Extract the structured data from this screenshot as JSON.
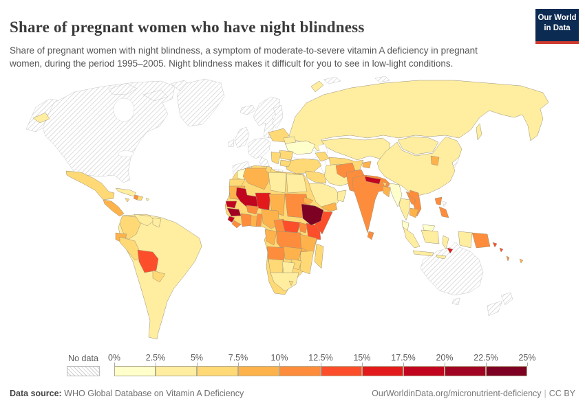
{
  "header": {
    "title": "Share of pregnant women who have night blindness",
    "subtitle": "Share of pregnant women with night blindness, a symptom of moderate-to-severe vitamin A deficiency in pregnant women, during the period 1995–2005. Night blindness makes it difficult for you to see in low-light conditions.",
    "logo": {
      "line1": "Our World",
      "line2": "in Data",
      "bg": "#0c2b52",
      "accent": "#cf3a30"
    }
  },
  "legend": {
    "no_data_label": "No data",
    "tick_labels": [
      "0%",
      "2.5%",
      "5%",
      "7.5%",
      "10%",
      "12.5%",
      "15%",
      "17.5%",
      "20%",
      "22.5%",
      "25%"
    ],
    "bin_colors": [
      "#FFFFCC",
      "#FFEDA0",
      "#FED976",
      "#FEB24C",
      "#FD8D3C",
      "#FC4E2A",
      "#E31A1C",
      "#C2051F",
      "#A10323",
      "#7D0123"
    ]
  },
  "footer": {
    "source_label": "Data source:",
    "source_text": " WHO Global Database on Vitamin A Deficiency",
    "link_text": "OurWorldinData.org/micronutrient-deficiency",
    "license": "CC BY"
  },
  "chart_data": {
    "type": "choropleth_map",
    "title": "Share of pregnant women who have night blindness",
    "period": "1995–2005",
    "unit": "% of pregnant women with night blindness",
    "scale": {
      "min_label": "0%",
      "max_label": "25%",
      "bin_width_percent": 2.5,
      "n_bins": 10
    },
    "no_data_regions": [
      "United States",
      "Canada",
      "Greenland",
      "Iceland",
      "United Kingdom",
      "Ireland",
      "France",
      "Spain",
      "Portugal",
      "Germany",
      "Italy",
      "Greece",
      "Norway",
      "Sweden",
      "Finland",
      "Denmark",
      "Japan",
      "South Korea",
      "Taiwan",
      "Australia",
      "New Zealand",
      "South Sudan",
      "French Guiana"
    ],
    "countries": [
      {
        "id": "ethiopia",
        "name": "Ethiopia",
        "bin": 10,
        "value_range": "22.5–25%"
      },
      {
        "id": "guinea",
        "name": "Guinea",
        "bin": 9,
        "value_range": "20–22.5%"
      },
      {
        "id": "senegal",
        "name": "Senegal",
        "bin": 8,
        "value_range": "17.5–20%"
      },
      {
        "id": "mali",
        "name": "Mali",
        "bin": 8,
        "value_range": "17.5–20%"
      },
      {
        "id": "sierra-leone",
        "name": "Sierra Leone",
        "bin": 8,
        "value_range": "17.5–20%"
      },
      {
        "id": "nepal",
        "name": "Nepal",
        "bin": 8,
        "value_range": "17.5–20%"
      },
      {
        "id": "niger",
        "name": "Niger",
        "bin": 7,
        "value_range": "15–17.5%"
      },
      {
        "id": "timor-leste",
        "name": "Timor-Leste",
        "bin": 7,
        "value_range": "15–17.5%"
      },
      {
        "id": "somalia",
        "name": "Somalia",
        "bin": 6,
        "value_range": "12.5–15%"
      },
      {
        "id": "kenya",
        "name": "Kenya",
        "bin": 6,
        "value_range": "12.5–15%"
      },
      {
        "id": "central-african-republic",
        "name": "Central African Republic",
        "bin": 6,
        "value_range": "12.5–15%"
      },
      {
        "id": "bolivia",
        "name": "Bolivia",
        "bin": 6,
        "value_range": "12.5–15%"
      },
      {
        "id": "solomon-islands",
        "name": "Solomon Islands",
        "bin": 6,
        "value_range": "12.5–15%"
      },
      {
        "id": "burkina-faso",
        "name": "Burkina Faso",
        "bin": 5,
        "value_range": "10–12.5%"
      },
      {
        "id": "india",
        "name": "India",
        "bin": 5,
        "value_range": "10–12.5%"
      },
      {
        "id": "pakistan",
        "name": "Pakistan",
        "bin": 5,
        "value_range": "10–12.5%"
      },
      {
        "id": "afghanistan",
        "name": "Afghanistan",
        "bin": 5,
        "value_range": "10–12.5%"
      },
      {
        "id": "sudan",
        "name": "Sudan",
        "bin": 5,
        "value_range": "10–12.5%"
      },
      {
        "id": "cameroon",
        "name": "Cameroon",
        "bin": 5,
        "value_range": "10–12.5%"
      },
      {
        "id": "democratic-republic-of-congo",
        "name": "Democratic Republic of Congo",
        "bin": 5,
        "value_range": "10–12.5%"
      },
      {
        "id": "angola",
        "name": "Angola",
        "bin": 5,
        "value_range": "10–12.5%"
      },
      {
        "id": "uganda",
        "name": "Uganda",
        "bin": 5,
        "value_range": "10–12.5%"
      },
      {
        "id": "cote-divoire",
        "name": "Cote d'Ivoire",
        "bin": 5,
        "value_range": "10–12.5%"
      },
      {
        "id": "liberia",
        "name": "Liberia",
        "bin": 5,
        "value_range": "10–12.5%"
      },
      {
        "id": "benin",
        "name": "Benin",
        "bin": 5,
        "value_range": "10–12.5%"
      },
      {
        "id": "haiti",
        "name": "Haiti",
        "bin": 5,
        "value_range": "10–12.5%"
      },
      {
        "id": "laos",
        "name": "Laos",
        "bin": 5,
        "value_range": "10–12.5%"
      },
      {
        "id": "vietnam",
        "name": "Vietnam",
        "bin": 5,
        "value_range": "10–12.5%"
      },
      {
        "id": "philippines",
        "name": "Philippines",
        "bin": 5,
        "value_range": "10–12.5%"
      },
      {
        "id": "papua-new-guinea",
        "name": "Papua New Guinea",
        "bin": 5,
        "value_range": "10–12.5%"
      },
      {
        "id": "sri-lanka",
        "name": "Sri Lanka",
        "bin": 5,
        "value_range": "10–12.5%"
      },
      {
        "id": "djibouti",
        "name": "Djibouti",
        "bin": 5,
        "value_range": "10–12.5%"
      },
      {
        "id": "vanuatu",
        "name": "Vanuatu",
        "bin": 5,
        "value_range": "10–12.5%"
      },
      {
        "id": "mauritania",
        "name": "Mauritania",
        "bin": 4,
        "value_range": "7.5–10%"
      },
      {
        "id": "chad",
        "name": "Chad",
        "bin": 4,
        "value_range": "7.5–10%"
      },
      {
        "id": "nigeria",
        "name": "Nigeria",
        "bin": 4,
        "value_range": "7.5–10%"
      },
      {
        "id": "ghana",
        "name": "Ghana",
        "bin": 4,
        "value_range": "7.5–10%"
      },
      {
        "id": "eritrea",
        "name": "Eritrea",
        "bin": 4,
        "value_range": "7.5–10%"
      },
      {
        "id": "yemen",
        "name": "Yemen",
        "bin": 4,
        "value_range": "7.5–10%"
      },
      {
        "id": "algeria",
        "name": "Algeria",
        "bin": 4,
        "value_range": "7.5–10%"
      },
      {
        "id": "zambia",
        "name": "Zambia",
        "bin": 4,
        "value_range": "7.5–10%"
      },
      {
        "id": "malawi",
        "name": "Malawi",
        "bin": 4,
        "value_range": "7.5–10%"
      },
      {
        "id": "tanzania",
        "name": "Tanzania",
        "bin": 4,
        "value_range": "7.5–10%"
      },
      {
        "id": "congo",
        "name": "Congo",
        "bin": 4,
        "value_range": "7.5–10%"
      },
      {
        "id": "ecuador",
        "name": "Ecuador",
        "bin": 4,
        "value_range": "7.5–10%"
      },
      {
        "id": "guatemala",
        "name": "Guatemala",
        "bin": 4,
        "value_range": "7.5–10%"
      },
      {
        "id": "bangladesh",
        "name": "Bangladesh",
        "bin": 4,
        "value_range": "7.5–10%"
      },
      {
        "id": "cambodia",
        "name": "Cambodia",
        "bin": 4,
        "value_range": "7.5–10%"
      },
      {
        "id": "north-korea",
        "name": "North Korea",
        "bin": 4,
        "value_range": "7.5–10%"
      },
      {
        "id": "tajikistan",
        "name": "Tajikistan",
        "bin": 4,
        "value_range": "7.5–10%"
      },
      {
        "id": "fiji",
        "name": "Fiji",
        "bin": 4,
        "value_range": "7.5–10%"
      },
      {
        "id": "western-sahara",
        "name": "Western Sahara",
        "bin": 3,
        "value_range": "5–7.5%"
      },
      {
        "id": "tunisia",
        "name": "Tunisia",
        "bin": 3,
        "value_range": "5–7.5%"
      },
      {
        "id": "peru",
        "name": "Peru",
        "bin": 3,
        "value_range": "5–7.5%"
      },
      {
        "id": "colombia",
        "name": "Colombia",
        "bin": 3,
        "value_range": "5–7.5%"
      },
      {
        "id": "paraguay",
        "name": "Paraguay",
        "bin": 3,
        "value_range": "5–7.5%"
      },
      {
        "id": "mexico",
        "name": "Mexico",
        "bin": 3,
        "value_range": "5–7.5%"
      },
      {
        "id": "dominican-republic",
        "name": "Dominican Republic",
        "bin": 3,
        "value_range": "5–7.5%"
      },
      {
        "id": "jamaica",
        "name": "Jamaica",
        "bin": 3,
        "value_range": "5–7.5%"
      },
      {
        "id": "mozambique",
        "name": "Mozambique",
        "bin": 3,
        "value_range": "5–7.5%"
      },
      {
        "id": "zimbabwe",
        "name": "Zimbabwe",
        "bin": 3,
        "value_range": "5–7.5%"
      },
      {
        "id": "namibia",
        "name": "Namibia",
        "bin": 3,
        "value_range": "5–7.5%"
      },
      {
        "id": "madagascar",
        "name": "Madagascar",
        "bin": 3,
        "value_range": "5–7.5%"
      },
      {
        "id": "lesotho",
        "name": "Lesotho",
        "bin": 3,
        "value_range": "5–7.5%"
      },
      {
        "id": "turkey",
        "name": "Turkey",
        "bin": 3,
        "value_range": "5–7.5%"
      },
      {
        "id": "iraq",
        "name": "Iraq",
        "bin": 3,
        "value_range": "5–7.5%"
      },
      {
        "id": "poland",
        "name": "Poland",
        "bin": 3,
        "value_range": "5–7.5%"
      },
      {
        "id": "romania",
        "name": "Romania",
        "bin": 3,
        "value_range": "5–7.5%"
      },
      {
        "id": "serbia",
        "name": "Serbia",
        "bin": 3,
        "value_range": "5–7.5%"
      },
      {
        "id": "bulgaria",
        "name": "Bulgaria",
        "bin": 3,
        "value_range": "5–7.5%"
      },
      {
        "id": "georgia",
        "name": "Georgia",
        "bin": 3,
        "value_range": "5–7.5%"
      },
      {
        "id": "uzbekistan",
        "name": "Uzbekistan",
        "bin": 3,
        "value_range": "5–7.5%"
      },
      {
        "id": "bhutan",
        "name": "Bhutan",
        "bin": 3,
        "value_range": "5–7.5%"
      },
      {
        "id": "russia",
        "name": "Russia",
        "bin": 2,
        "value_range": "2.5–5%"
      },
      {
        "id": "china",
        "name": "China",
        "bin": 2,
        "value_range": "2.5–5%"
      },
      {
        "id": "mongolia",
        "name": "Mongolia",
        "bin": 2,
        "value_range": "2.5–5%"
      },
      {
        "id": "kazakhstan",
        "name": "Kazakhstan",
        "bin": 2,
        "value_range": "2.5–5%"
      },
      {
        "id": "iran",
        "name": "Iran",
        "bin": 2,
        "value_range": "2.5–5%"
      },
      {
        "id": "saudi-arabia",
        "name": "Saudi Arabia",
        "bin": 2,
        "value_range": "2.5–5%"
      },
      {
        "id": "oman",
        "name": "Oman",
        "bin": 2,
        "value_range": "2.5–5%"
      },
      {
        "id": "egypt",
        "name": "Egypt",
        "bin": 2,
        "value_range": "2.5–5%"
      },
      {
        "id": "libya",
        "name": "Libya",
        "bin": 2,
        "value_range": "2.5–5%"
      },
      {
        "id": "south-africa",
        "name": "South Africa",
        "bin": 2,
        "value_range": "2.5–5%"
      },
      {
        "id": "botswana",
        "name": "Botswana",
        "bin": 2,
        "value_range": "2.5–5%"
      },
      {
        "id": "brazil",
        "name": "Brazil",
        "bin": 2,
        "value_range": "2.5–5%"
      },
      {
        "id": "venezuela",
        "name": "Venezuela",
        "bin": 2,
        "value_range": "2.5–5%"
      },
      {
        "id": "cuba",
        "name": "Cuba",
        "bin": 2,
        "value_range": "2.5–5%"
      },
      {
        "id": "belarus",
        "name": "Belarus",
        "bin": 2,
        "value_range": "2.5–5%"
      },
      {
        "id": "thailand",
        "name": "Thailand",
        "bin": 2,
        "value_range": "2.5–5%"
      },
      {
        "id": "indonesia",
        "name": "Indonesia",
        "bin": 2,
        "value_range": "2.5–5%"
      },
      {
        "id": "guyana",
        "name": "Guyana",
        "bin": 2,
        "value_range": "2.5–5%"
      },
      {
        "id": "puerto-rico",
        "name": "Puerto Rico",
        "bin": 2,
        "value_range": "2.5–5%"
      },
      {
        "id": "ukraine",
        "name": "Ukraine",
        "bin": 1,
        "value_range": "0–2.5%"
      },
      {
        "id": "malaysia",
        "name": "Malaysia",
        "bin": 1,
        "value_range": "0–2.5%"
      },
      {
        "id": "myanmar",
        "name": "Myanmar",
        "bin": 1,
        "value_range": "0–2.5%"
      },
      {
        "id": "morocco",
        "name": "Morocco",
        "bin": 1,
        "value_range": "0–2.5%"
      }
    ]
  },
  "map": {
    "base_regions": [
      {
        "id": "africa-base",
        "bin": 3
      },
      {
        "id": "south-america-base",
        "bin": 2
      }
    ]
  }
}
